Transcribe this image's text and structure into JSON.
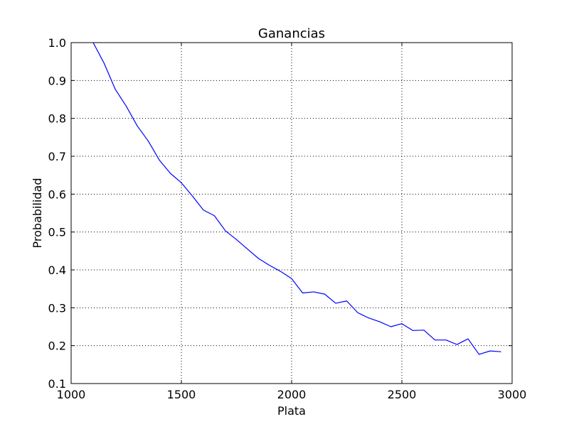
{
  "chart_data": {
    "type": "line",
    "title": "Ganancias",
    "xlabel": "Plata",
    "ylabel": "Probabilidad",
    "xlim": [
      1000,
      3000
    ],
    "ylim": [
      0.1,
      1.0
    ],
    "xticks": [
      "1000",
      "1500",
      "2000",
      "2500",
      "3000"
    ],
    "yticks": [
      "0.1",
      "0.2",
      "0.3",
      "0.4",
      "0.5",
      "0.6",
      "0.7",
      "0.8",
      "0.9",
      "1.0"
    ],
    "grid": true,
    "series": [
      {
        "color": "#0000ff",
        "x": [
          1100,
          1150,
          1200,
          1250,
          1300,
          1350,
          1400,
          1450,
          1500,
          1550,
          1600,
          1650,
          1700,
          1750,
          1800,
          1850,
          1900,
          1950,
          2000,
          2050,
          2100,
          2150,
          2200,
          2250,
          2300,
          2350,
          2400,
          2450,
          2500,
          2550,
          2600,
          2650,
          2700,
          2750,
          2800,
          2850,
          2900,
          2950
        ],
        "y": [
          1.0,
          0.945,
          0.877,
          0.832,
          0.78,
          0.74,
          0.69,
          0.655,
          0.63,
          0.595,
          0.558,
          0.543,
          0.503,
          0.48,
          0.455,
          0.43,
          0.412,
          0.396,
          0.377,
          0.339,
          0.342,
          0.336,
          0.312,
          0.318,
          0.287,
          0.273,
          0.263,
          0.25,
          0.258,
          0.24,
          0.241,
          0.215,
          0.215,
          0.203,
          0.218,
          0.177,
          0.186,
          0.184
        ]
      }
    ]
  }
}
